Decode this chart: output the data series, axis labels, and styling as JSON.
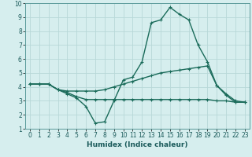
{
  "x": [
    0,
    1,
    2,
    3,
    4,
    5,
    6,
    7,
    8,
    9,
    10,
    11,
    12,
    13,
    14,
    15,
    16,
    17,
    18,
    19,
    20,
    21,
    22,
    23
  ],
  "line1": [
    4.2,
    4.2,
    4.2,
    3.8,
    3.5,
    3.2,
    2.6,
    1.4,
    1.5,
    3.0,
    4.5,
    4.7,
    5.8,
    8.6,
    8.8,
    9.7,
    9.2,
    8.8,
    7.0,
    5.8,
    4.1,
    3.4,
    2.9,
    2.9
  ],
  "line2": [
    4.2,
    4.2,
    4.2,
    3.8,
    3.6,
    3.3,
    3.1,
    3.1,
    3.1,
    3.1,
    3.1,
    3.1,
    3.1,
    3.1,
    3.1,
    3.1,
    3.1,
    3.1,
    3.1,
    3.1,
    3.0,
    3.0,
    2.9,
    2.9
  ],
  "line3": [
    4.2,
    4.2,
    4.2,
    3.8,
    3.7,
    3.7,
    3.7,
    3.7,
    3.8,
    4.0,
    4.2,
    4.4,
    4.6,
    4.8,
    5.0,
    5.1,
    5.2,
    5.3,
    5.4,
    5.5,
    4.1,
    3.5,
    3.0,
    2.9
  ],
  "bg_color": "#d6eeee",
  "grid_color": "#b8d8d8",
  "line_color": "#1a6b5a",
  "xlabel": "Humidex (Indice chaleur)",
  "ylim": [
    1,
    10
  ],
  "xlim": [
    -0.5,
    23.5
  ],
  "yticks": [
    1,
    2,
    3,
    4,
    5,
    6,
    7,
    8,
    9,
    10
  ],
  "xticks": [
    0,
    1,
    2,
    3,
    4,
    5,
    6,
    7,
    8,
    9,
    10,
    11,
    12,
    13,
    14,
    15,
    16,
    17,
    18,
    19,
    20,
    21,
    22,
    23
  ],
  "tick_fontsize": 5.5,
  "xlabel_fontsize": 6.5,
  "line_width": 1.0,
  "marker_size": 3.5
}
